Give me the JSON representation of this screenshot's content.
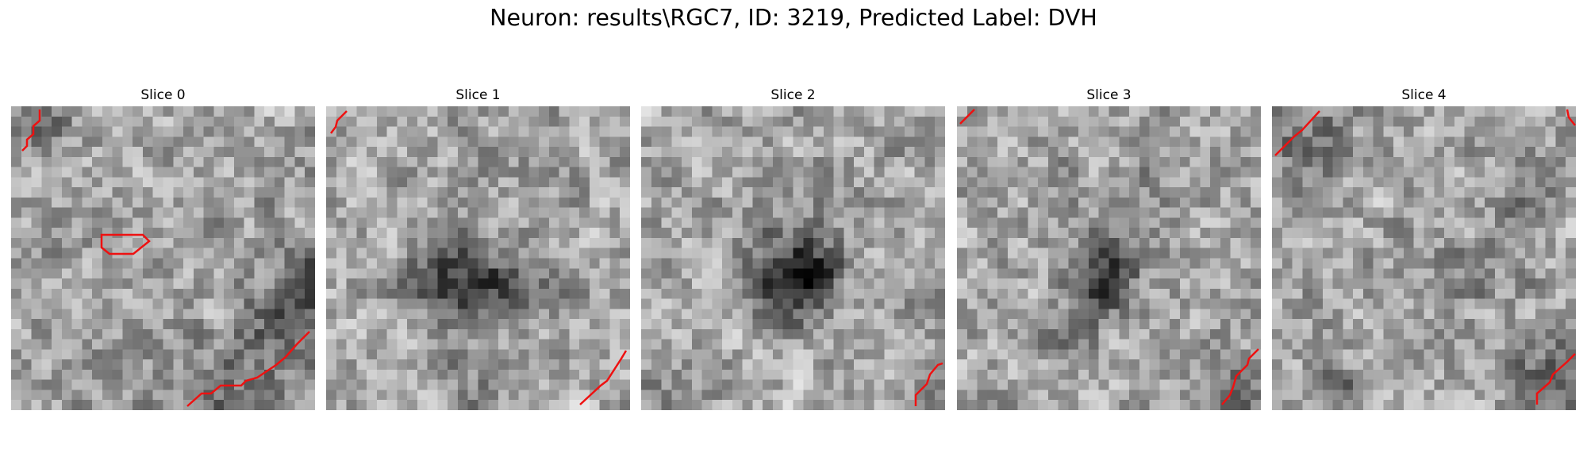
{
  "figure": {
    "title": "Neuron: results\\RGC7, ID: 3219, Predicted Label: DVH"
  },
  "slices": [
    {
      "title": "Slice 0"
    },
    {
      "title": "Slice 1"
    },
    {
      "title": "Slice 2"
    },
    {
      "title": "Slice 3"
    },
    {
      "title": "Slice 4"
    }
  ],
  "colors": {
    "contour": "#ee1111",
    "colormap": "gray"
  }
}
